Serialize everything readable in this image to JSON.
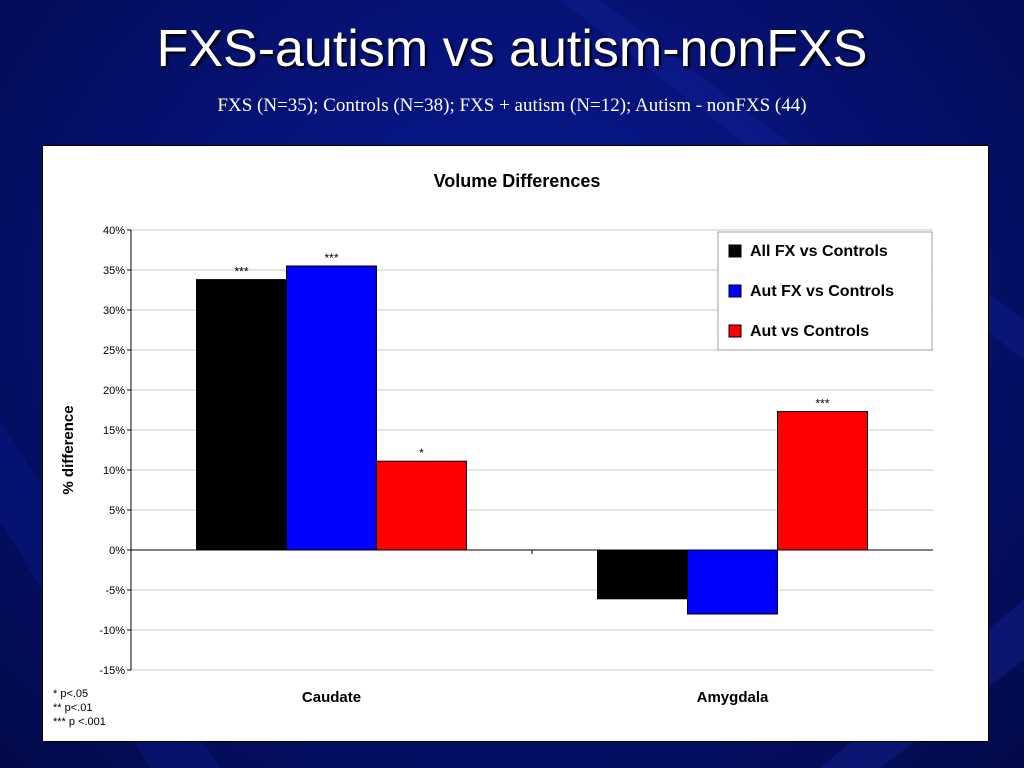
{
  "slide": {
    "title": "FXS-autism vs autism-nonFXS",
    "subtitle": "FXS (N=35);  Controls (N=38);  FXS + autism (N=12); Autism - nonFXS (44)",
    "footnotes": [
      "* p<.05",
      "** p<.01",
      "*** p <.001"
    ]
  },
  "chart_data": {
    "type": "bar",
    "title": "Volume Differences",
    "xlabel": "",
    "ylabel": "% difference",
    "categories": [
      "Caudate",
      "Amygdala"
    ],
    "ylim": [
      -15,
      40
    ],
    "y_tick_step": 5,
    "y_tick_labels": [
      "40%",
      "35%",
      "30%",
      "25%",
      "20%",
      "15%",
      "10%",
      "5%",
      "0%",
      "-5%",
      "-10%",
      "-15%"
    ],
    "grid": true,
    "legend_position": "top-right",
    "series": [
      {
        "name": "All FX vs Controls",
        "color": "#000000",
        "values": [
          33.8,
          -6.1
        ],
        "annotations": [
          "***",
          ""
        ]
      },
      {
        "name": "Aut FX vs Controls",
        "color": "#0000ff",
        "values": [
          35.5,
          -8.0
        ],
        "annotations": [
          "***",
          ""
        ]
      },
      {
        "name": "Aut vs Controls",
        "color": "#ff0000",
        "values": [
          11.1,
          17.3
        ],
        "annotations": [
          "*",
          "***"
        ]
      }
    ]
  }
}
